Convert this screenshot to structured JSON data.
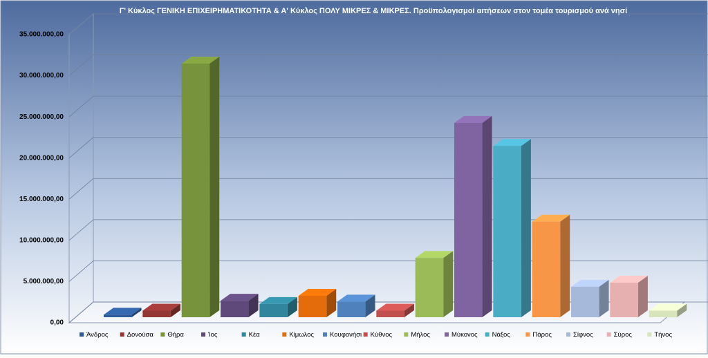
{
  "chart_data": {
    "type": "bar3d",
    "title": "Γ' Κύκλος ΓΕΝΙΚΗ ΕΠΙΧΕΙΡΗΜΑΤΙΚΟΤΗΤΑ & Α' Κύκλος ΠΟΛΥ ΜΙΚΡΕΣ & ΜΙΚΡΕΣ. Προϋπολογισμοί αιτήσεων στον τομέα τουρισμού ανά νησί",
    "categories": [
      "Άνδρος",
      "Δονούσα",
      "Θήρα",
      "Ίος",
      "Κέα",
      "Κίμωλος",
      "Κουφονήσι",
      "Κύθνος",
      "Μήλος",
      "Μύκονος",
      "Νάξος",
      "Πάρος",
      "Σίφνος",
      "Σύρος",
      "Τήνος"
    ],
    "values": [
      300000,
      800000,
      30800000,
      2000000,
      1600000,
      2600000,
      1900000,
      800000,
      7200000,
      23600000,
      20800000,
      11600000,
      3700000,
      4200000,
      800000
    ],
    "colors": [
      "#2e5b9a",
      "#943634",
      "#77933c",
      "#5f497a",
      "#31859c",
      "#e46c0a",
      "#4f81bd",
      "#c0504d",
      "#9bbb59",
      "#8064a2",
      "#4bacc6",
      "#f79646",
      "#a6b9da",
      "#e6b0b0",
      "#d7e4bc"
    ],
    "ylim": [
      0,
      35000000
    ],
    "yticks": [
      {
        "value": 0,
        "label": "0,00"
      },
      {
        "value": 5000000,
        "label": "5.000.000,00"
      },
      {
        "value": 10000000,
        "label": "10.000.000,00"
      },
      {
        "value": 15000000,
        "label": "15.000.000,00"
      },
      {
        "value": 20000000,
        "label": "20.000.000,00"
      },
      {
        "value": 25000000,
        "label": "25.000.000,00"
      },
      {
        "value": 30000000,
        "label": "30.000.000,00"
      },
      {
        "value": 35000000,
        "label": "35.000.000,00"
      }
    ],
    "grid": true
  }
}
